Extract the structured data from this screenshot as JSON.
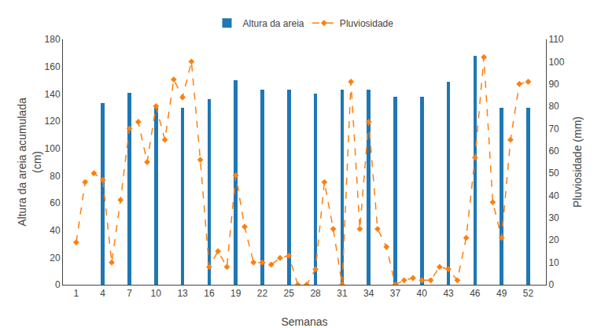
{
  "chart_data": {
    "type": "bar",
    "xlabel": "Semanas",
    "ylabel": "Altura da areia acumulada\n(cm)",
    "y2label": "Pluviosidade (mm)",
    "series": [
      {
        "name": "Altura da areia",
        "type": "bar",
        "x": [
          4,
          7,
          10,
          13,
          16,
          19,
          22,
          25,
          28,
          31,
          34,
          37,
          40,
          43,
          46,
          49,
          52
        ],
        "values": [
          133,
          141,
          130,
          130,
          136,
          150,
          143,
          143,
          140,
          143,
          143,
          138,
          138,
          149,
          168,
          130,
          130
        ]
      },
      {
        "name": "Pluviosidade",
        "type": "line",
        "axis": "y2",
        "line_style": "dashed",
        "marker": "diamond",
        "x": [
          1,
          2,
          3,
          4,
          5,
          6,
          7,
          8,
          9,
          10,
          11,
          12,
          13,
          14,
          15,
          16,
          17,
          18,
          19,
          20,
          21,
          22,
          23,
          24,
          25,
          26,
          27,
          28,
          29,
          30,
          31,
          32,
          33,
          34,
          35,
          36,
          37,
          38,
          39,
          40,
          41,
          42,
          43,
          44,
          45,
          46,
          47,
          48,
          49,
          50,
          51,
          52
        ],
        "values": [
          19,
          46,
          50,
          47,
          10,
          38,
          70,
          73,
          55,
          80,
          65,
          92,
          84,
          100,
          56,
          8,
          15,
          8,
          49,
          26,
          10,
          10,
          9,
          12,
          13,
          0,
          0,
          7,
          46,
          25,
          0,
          91,
          25,
          73,
          25,
          17,
          0,
          2,
          3,
          2,
          2,
          8,
          7,
          2,
          21,
          57,
          102,
          37,
          21,
          65,
          90,
          91
        ]
      }
    ],
    "xlim": [
      -0.5,
      54
    ],
    "xticks": [
      1,
      4,
      7,
      10,
      13,
      16,
      19,
      22,
      25,
      28,
      31,
      34,
      37,
      40,
      43,
      46,
      49,
      52
    ],
    "ylim": [
      0,
      180
    ],
    "yticks": [
      0,
      20,
      40,
      60,
      80,
      100,
      120,
      140,
      160,
      180
    ],
    "y2lim": [
      0,
      110
    ],
    "y2ticks": [
      0,
      10,
      20,
      30,
      40,
      50,
      60,
      70,
      80,
      90,
      100,
      110
    ],
    "grid": false,
    "legend": "top"
  }
}
